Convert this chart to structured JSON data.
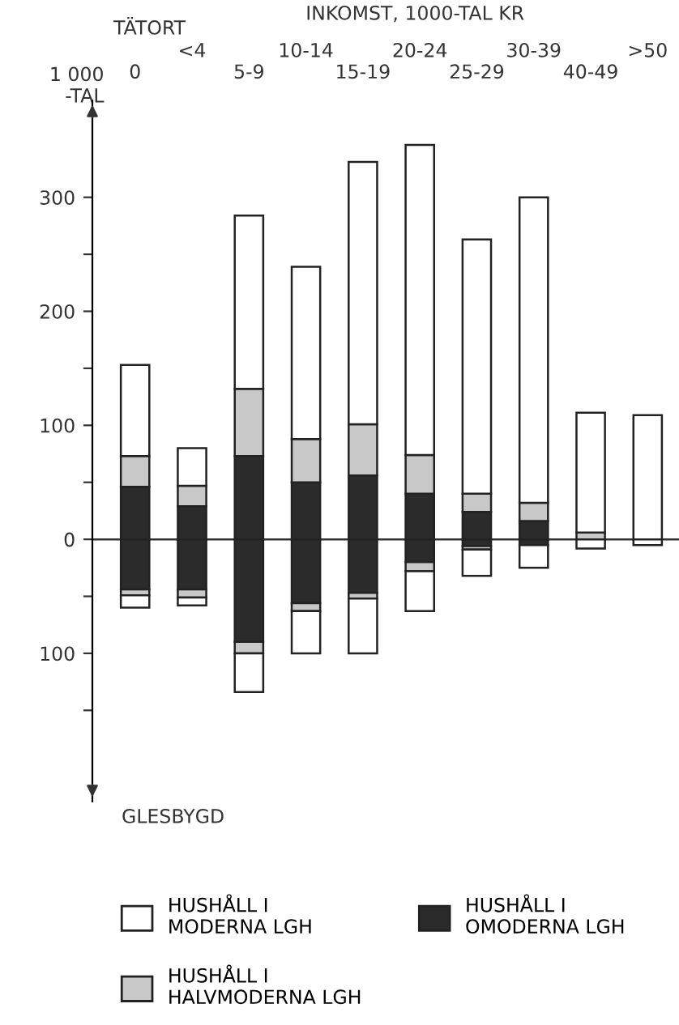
{
  "chart_data": {
    "type": "bar",
    "stacked": true,
    "xlabel": "INKOMST, 1000-TAL KR",
    "ylabel": "1 000\n-TAL",
    "annotations": [
      "TÄTORT",
      "GLESBYGD"
    ],
    "categories": [
      "0",
      "<4",
      "5-9",
      "10-14",
      "15-19",
      "20-24",
      "25-29",
      "30-39",
      "40-49",
      ">50"
    ],
    "series": [
      {
        "name": "HUSHÅLL I\nOMODERNA LGH",
        "color": "#2b2b2b",
        "values": [
          46,
          29,
          73,
          50,
          56,
          40,
          24,
          16,
          null,
          null
        ]
      },
      {
        "name": "HUSHÅLL I\nHALVMODERNA LGH",
        "color": "#c8c8c8",
        "values": [
          27,
          18,
          59,
          38,
          45,
          34,
          16,
          16,
          6,
          null
        ]
      },
      {
        "name": "HUSHÅLL I\nMODERNA LGH",
        "color": "#ffffff",
        "values": [
          80,
          33,
          152,
          151,
          230,
          272,
          223,
          268,
          105,
          109
        ]
      },
      {
        "color": "#2b2b2b",
        "values": [
          -44,
          -44,
          -90,
          -56,
          -47,
          -20,
          -6,
          -5,
          null,
          null
        ]
      },
      {
        "color": "#c8c8c8",
        "values": [
          -5,
          -7,
          -10,
          -7,
          -5,
          -8,
          -3,
          null,
          null,
          null
        ]
      },
      {
        "color": "#ffffff",
        "values": [
          -11,
          -7,
          -34,
          -37,
          -48,
          -35,
          -23,
          -20,
          -8,
          -5
        ]
      }
    ],
    "ylim": [
      -230,
      385
    ],
    "yticks": [
      {
        "value": -150,
        "label": null
      },
      {
        "value": -100,
        "label": "100"
      },
      {
        "value": -50,
        "label": null
      },
      0,
      {
        "value": 50,
        "label": null
      },
      100,
      {
        "value": 150,
        "label": null
      },
      200,
      {
        "value": 250,
        "label": null
      },
      300
    ],
    "ref_lines": [
      {
        "axis": "y",
        "value": 0,
        "color": "#333333"
      }
    ],
    "grid": false,
    "legend": "bottom"
  }
}
